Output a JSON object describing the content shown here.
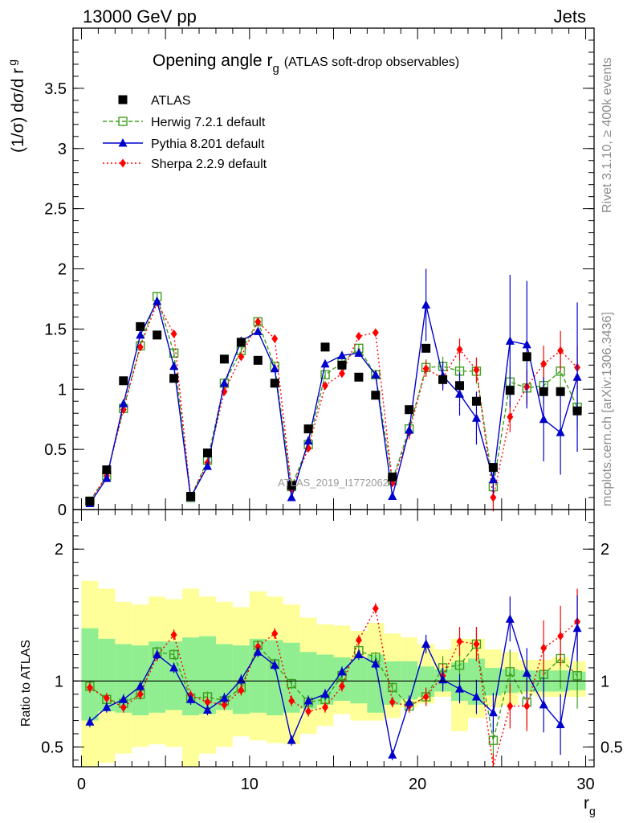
{
  "header": {
    "energy_label": "13000 GeV pp",
    "process_label": "Jets"
  },
  "side": {
    "rivet_text": "Rivet 3.1.10, ≥ 400k events",
    "mcplots_text": "mcplots.cern.ch [arXiv:1306.3436]"
  },
  "watermark": "ATLAS_2019_I1772062",
  "chart_data": [
    {
      "type": "line",
      "title": "Opening angle r_g (ATLAS soft-drop observables)",
      "title_main": "Opening angle r",
      "title_sub": "g",
      "title_rest": "(ATLAS soft-drop observables)",
      "ylabel_main": "(1/σ) dσ/d r",
      "ylabel_sub": "g",
      "ylim": [
        0,
        4.0
      ],
      "xlim": [
        -0.5,
        30.5
      ],
      "yticks": [
        "0",
        "0.5",
        "1",
        "1.5",
        "2",
        "2.5",
        "3",
        "3.5"
      ],
      "legend_position": "top-left",
      "x": [
        0.5,
        1.5,
        2.5,
        3.5,
        4.5,
        5.5,
        6.5,
        7.5,
        8.5,
        9.5,
        10.5,
        11.5,
        12.5,
        13.5,
        14.5,
        15.5,
        16.5,
        17.5,
        18.5,
        19.5,
        20.5,
        21.5,
        22.5,
        23.5,
        24.5,
        25.5,
        26.5,
        27.5,
        28.5,
        29.5
      ],
      "series": [
        {
          "name": "ATLAS",
          "color": "#000000",
          "marker": "square",
          "values": [
            0.07,
            0.33,
            1.07,
            1.52,
            1.45,
            1.09,
            0.11,
            0.47,
            1.25,
            1.39,
            1.24,
            1.05,
            0.2,
            0.67,
            1.35,
            1.2,
            1.1,
            0.95,
            0.27,
            0.83,
            1.34,
            1.08,
            1.03,
            0.9,
            0.35,
            0.99,
            1.27,
            0.98,
            0.98,
            0.82
          ]
        },
        {
          "name": "Herwig 7.2.1 default",
          "color": "#3f9f1f",
          "marker": "open-square",
          "values": [
            0.07,
            0.28,
            0.84,
            1.36,
            1.77,
            1.3,
            0.1,
            0.41,
            1.05,
            1.32,
            1.56,
            1.19,
            0.19,
            0.54,
            1.12,
            1.22,
            1.34,
            1.12,
            0.24,
            0.67,
            1.18,
            1.19,
            1.15,
            1.15,
            0.19,
            1.06,
            1.01,
            1.03,
            1.15,
            0.85
          ]
        },
        {
          "name": "Pythia 8.201 default",
          "color": "#0000cc",
          "marker": "triangle",
          "values": [
            0.05,
            0.26,
            0.88,
            1.45,
            1.73,
            1.19,
            0.1,
            0.36,
            1.05,
            1.4,
            1.48,
            1.17,
            0.1,
            0.57,
            1.21,
            1.28,
            1.3,
            1.12,
            0.11,
            0.66,
            1.7,
            1.11,
            0.96,
            0.76,
            0.25,
            1.4,
            1.37,
            0.75,
            0.64,
            1.1
          ]
        },
        {
          "name": "Sherpa 2.2.9 default",
          "color": "#ff0000",
          "marker": "diamond",
          "values": [
            0.07,
            0.28,
            0.83,
            1.35,
            1.72,
            1.46,
            0.1,
            0.39,
            0.98,
            1.27,
            1.56,
            1.42,
            0.17,
            0.51,
            1.03,
            1.13,
            1.44,
            1.47,
            0.22,
            0.64,
            1.17,
            1.09,
            1.33,
            1.16,
            0.1,
            0.77,
            1.02,
            1.21,
            1.32,
            1.18
          ]
        }
      ]
    },
    {
      "type": "line",
      "title": "",
      "ylabel": "Ratio to ATLAS",
      "ylim": [
        0.35,
        2.3
      ],
      "xlim": [
        -0.5,
        30.5
      ],
      "xlabel_main": "r",
      "xlabel_sub": "g",
      "xticks": [
        "0",
        "10",
        "20",
        "30"
      ],
      "yticks": [
        "0.5",
        "1",
        "2"
      ],
      "x": [
        0.5,
        1.5,
        2.5,
        3.5,
        4.5,
        5.5,
        6.5,
        7.5,
        8.5,
        9.5,
        10.5,
        11.5,
        12.5,
        13.5,
        14.5,
        15.5,
        16.5,
        17.5,
        18.5,
        19.5,
        20.5,
        21.5,
        22.5,
        23.5,
        24.5,
        25.5,
        26.5,
        27.5,
        28.5,
        29.5
      ],
      "band_inner": {
        "color": "#90ee90",
        "lo": [
          0.7,
          0.77,
          0.76,
          0.74,
          0.76,
          0.78,
          0.74,
          0.75,
          0.78,
          0.75,
          0.76,
          0.74,
          0.76,
          0.79,
          0.82,
          0.85,
          0.83,
          0.76,
          0.82,
          0.86,
          0.88,
          0.92,
          0.85,
          0.82,
          0.89,
          0.91,
          0.92,
          0.92,
          0.92,
          0.93
        ],
        "hi": [
          1.4,
          1.32,
          1.28,
          1.27,
          1.3,
          1.3,
          1.33,
          1.34,
          1.28,
          1.27,
          1.32,
          1.31,
          1.29,
          1.22,
          1.2,
          1.18,
          1.17,
          1.2,
          1.15,
          1.15,
          1.11,
          1.09,
          1.14,
          1.17,
          1.1,
          1.09,
          1.08,
          1.08,
          1.08,
          1.07
        ]
      },
      "band_outer": {
        "color": "#ffff99",
        "lo": [
          0.35,
          0.38,
          0.45,
          0.5,
          0.52,
          0.5,
          0.35,
          0.45,
          0.5,
          0.58,
          0.55,
          0.53,
          0.52,
          0.6,
          0.66,
          0.75,
          0.7,
          0.7,
          0.72,
          0.8,
          0.83,
          0.88,
          0.62,
          0.72,
          0.8,
          0.82,
          0.9,
          0.88,
          0.88,
          0.88
        ],
        "hi": [
          1.76,
          1.7,
          1.6,
          1.58,
          1.64,
          1.62,
          1.7,
          1.64,
          1.6,
          1.56,
          1.68,
          1.64,
          1.58,
          1.48,
          1.43,
          1.42,
          1.38,
          1.44,
          1.36,
          1.33,
          1.28,
          1.24,
          1.32,
          1.32,
          1.24,
          1.22,
          1.16,
          1.16,
          1.18,
          1.15
        ]
      },
      "series": [
        {
          "name": "Herwig 7.2.1 default",
          "color": "#3f9f1f",
          "marker": "open-square",
          "values": [
            0.96,
            0.86,
            0.83,
            0.9,
            1.22,
            1.2,
            0.87,
            0.88,
            0.85,
            0.95,
            1.27,
            1.13,
            0.98,
            0.84,
            0.86,
            1.04,
            1.23,
            1.18,
            0.95,
            0.81,
            0.88,
            1.1,
            1.12,
            1.28,
            0.55,
            1.07,
            0.84,
            1.05,
            1.17,
            1.04
          ]
        },
        {
          "name": "Pythia 8.201 default",
          "color": "#0000cc",
          "marker": "triangle",
          "values": [
            0.69,
            0.8,
            0.86,
            0.96,
            1.2,
            1.1,
            0.86,
            0.78,
            0.87,
            1.01,
            1.22,
            1.12,
            0.55,
            0.85,
            0.9,
            1.07,
            1.2,
            1.13,
            0.44,
            0.84,
            1.28,
            1.01,
            0.94,
            0.88,
            0.76,
            1.47,
            1.06,
            0.82,
            0.67,
            1.4
          ]
        },
        {
          "name": "Sherpa 2.2.9 default",
          "color": "#ff0000",
          "marker": "diamond",
          "values": [
            0.95,
            0.87,
            0.8,
            0.9,
            1.19,
            1.35,
            0.89,
            0.84,
            0.82,
            0.93,
            1.26,
            1.36,
            0.85,
            0.77,
            0.8,
            0.96,
            1.31,
            1.55,
            0.84,
            0.81,
            0.88,
            1.04,
            1.3,
            1.28,
            0.3,
            0.81,
            0.81,
            1.25,
            1.34,
            1.45
          ]
        }
      ]
    }
  ]
}
